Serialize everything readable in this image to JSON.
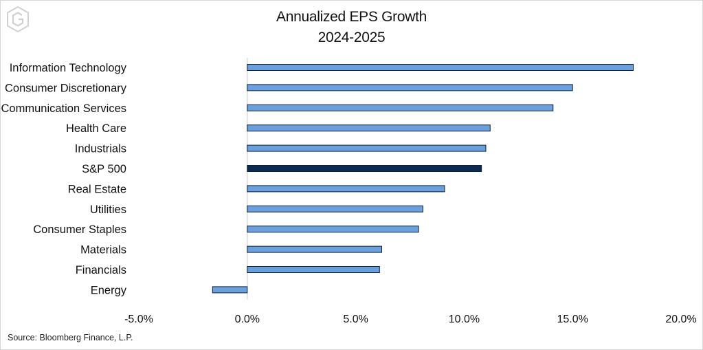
{
  "chart_data": {
    "type": "bar",
    "orientation": "horizontal",
    "title": "Annualized EPS Growth",
    "subtitle": "2024-2025",
    "categories": [
      "Information Technology",
      "Consumer Discretionary",
      "Communication Services",
      "Health Care",
      "Industrials",
      "S&P 500",
      "Real Estate",
      "Utilities",
      "Consumer Staples",
      "Materials",
      "Financials",
      "Energy"
    ],
    "values": [
      17.8,
      15.0,
      14.1,
      11.2,
      11.0,
      10.8,
      9.1,
      8.1,
      7.9,
      6.2,
      6.1,
      -1.6
    ],
    "highlight_category": "S&P 500",
    "xlim": [
      -5.0,
      20.0
    ],
    "xticks": [
      -5.0,
      0.0,
      5.0,
      10.0,
      15.0,
      20.0
    ],
    "xtick_labels": [
      "-5.0%",
      "0.0%",
      "5.0%",
      "10.0%",
      "15.0%",
      "20.0%"
    ],
    "xlabel": "",
    "ylabel": "",
    "grid": false,
    "legend": "none",
    "colors": {
      "bar": "#6ca0dc",
      "highlight": "#0f2a4f",
      "bar_edge": "#0a1f3c",
      "zero_line": "#c8c8c8"
    }
  },
  "source": "Source: Bloomberg Finance, L.P."
}
